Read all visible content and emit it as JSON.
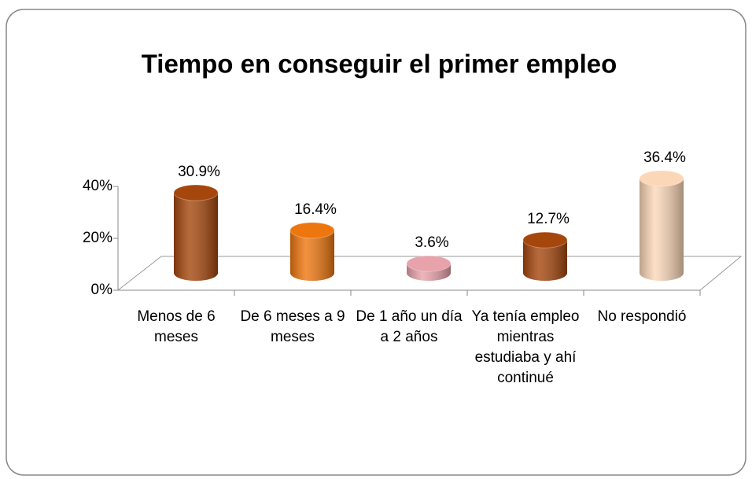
{
  "chart_data": {
    "type": "bar3d",
    "title": "Tiempo en conseguir el primer empleo",
    "categories": [
      "Menos de 6 meses",
      "De 6 meses a 9 meses",
      "De 1 año un día a 2 años",
      "Ya tenía empleo mientras estudiaba y ahí continué",
      "No respondió"
    ],
    "values": [
      30.9,
      16.4,
      3.6,
      12.7,
      36.4
    ],
    "value_labels": [
      "30.9%",
      "16.4%",
      "3.6%",
      "12.7%",
      "36.4%"
    ],
    "colors": [
      "#a5460c",
      "#ee760e",
      "#e8a2ab",
      "#a5460c",
      "#fbd7b8"
    ],
    "ylim": [
      0,
      40
    ],
    "yticks": [
      {
        "value": 0,
        "label": "0%"
      },
      {
        "value": 20,
        "label": "20%"
      },
      {
        "value": 40,
        "label": "40%"
      }
    ]
  }
}
